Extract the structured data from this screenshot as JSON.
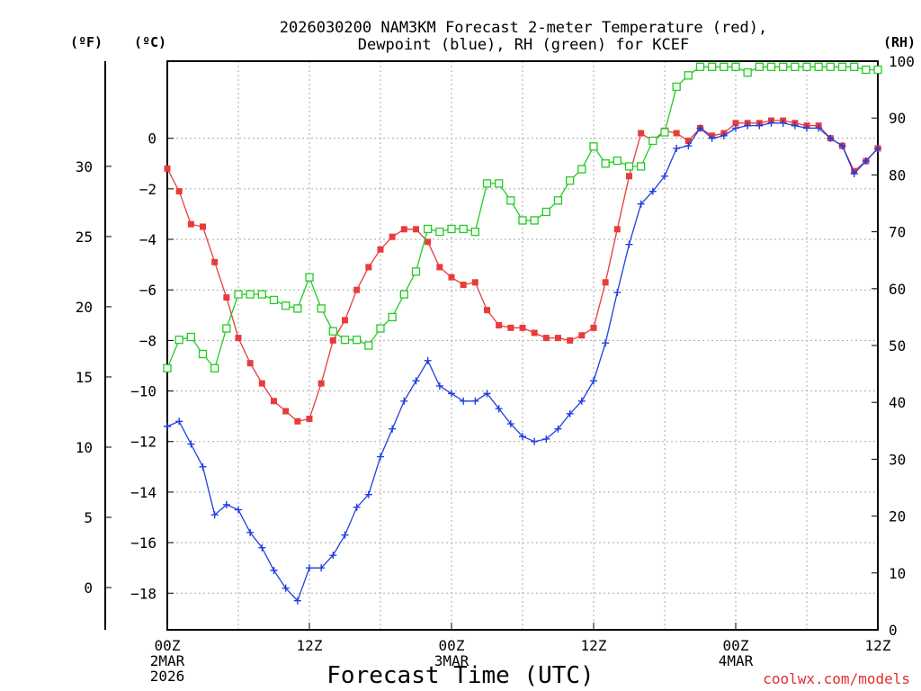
{
  "chart_data": {
    "type": "line",
    "title_line1": "2026030200 NAM3KM Forecast 2-meter Temperature (red),",
    "title_line2": "Dewpoint (blue), RH (green) for KCEF",
    "xlabel": "Forecast Time (UTC)",
    "credit": "coolwx.com/models",
    "unit_f": "(ºF)",
    "unit_c": "(ºC)",
    "unit_rh": "(RH)",
    "x_ticks": [
      {
        "h": 0,
        "l1": "00Z",
        "l2": "2MAR",
        "l3": "2026"
      },
      {
        "h": 12,
        "l1": "12Z",
        "l2": "",
        "l3": ""
      },
      {
        "h": 24,
        "l1": "00Z",
        "l2": "3MAR",
        "l3": ""
      },
      {
        "h": 36,
        "l1": "12Z",
        "l2": "",
        "l3": ""
      },
      {
        "h": 48,
        "l1": "00Z",
        "l2": "4MAR",
        "l3": ""
      },
      {
        "h": 60,
        "l1": "12Z",
        "l2": "",
        "l3": ""
      }
    ],
    "xlim": [
      0,
      60
    ],
    "ylim_c": [
      -19.45,
      3.05
    ],
    "c_ticks": [
      0,
      -2,
      -4,
      -6,
      -8,
      -10,
      -12,
      -14,
      -16,
      -18
    ],
    "c_labels": [
      "0",
      "−2",
      "−4",
      "−6",
      "−8",
      "−10",
      "−12",
      "−14",
      "−16",
      "−18"
    ],
    "f_ticks": [
      30,
      25,
      20,
      15,
      10,
      5,
      0
    ],
    "f_labels": [
      "30",
      "25",
      "20",
      "15",
      "10",
      "5",
      "0"
    ],
    "rh_ticks": [
      100,
      90,
      80,
      70,
      60,
      50,
      40,
      30,
      20,
      10,
      0
    ],
    "rh_labels": [
      "100",
      "90",
      "80",
      "70",
      "60",
      "50",
      "40",
      "30",
      "20",
      "10",
      "0"
    ],
    "series": [
      {
        "name": "Temperature",
        "color": "#e83c3c",
        "marker": "square-filled",
        "values": [
          -1.2,
          -2.1,
          -3.4,
          -3.5,
          -4.9,
          -6.3,
          -7.9,
          -8.9,
          -9.7,
          -10.4,
          -10.8,
          -11.2,
          -11.1,
          -9.7,
          -8.0,
          -7.2,
          -6.0,
          -5.1,
          -4.4,
          -3.9,
          -3.6,
          -3.6,
          -4.1,
          -5.1,
          -5.5,
          -5.8,
          -5.7,
          -6.8,
          -7.4,
          -7.5,
          -7.5,
          -7.7,
          -7.9,
          -7.9,
          -8.0,
          -7.8,
          -7.5,
          -5.7,
          -3.6,
          -1.5,
          0.2,
          -0.1,
          0.3,
          0.2,
          -0.1,
          0.4,
          0.1,
          0.2,
          0.6,
          0.6,
          0.6,
          0.7,
          0.7,
          0.6,
          0.5,
          0.5,
          0.0,
          -0.3,
          -1.3,
          -0.9,
          -0.4
        ]
      },
      {
        "name": "Dewpoint",
        "color": "#1f3fe0",
        "marker": "plus",
        "values": [
          -11.4,
          -11.2,
          -12.1,
          -13.0,
          -14.9,
          -14.5,
          -14.7,
          -15.6,
          -16.2,
          -17.1,
          -17.8,
          -18.3,
          -17.0,
          -17.0,
          -16.5,
          -15.7,
          -14.6,
          -14.1,
          -12.6,
          -11.5,
          -10.4,
          -9.6,
          -8.8,
          -9.8,
          -10.1,
          -10.4,
          -10.4,
          -10.1,
          -10.7,
          -11.3,
          -11.8,
          -12.0,
          -11.9,
          -11.5,
          -10.9,
          -10.4,
          -9.6,
          -8.1,
          -6.1,
          -4.2,
          -2.6,
          -2.1,
          -1.5,
          -0.4,
          -0.3,
          0.4,
          0.0,
          0.1,
          0.4,
          0.5,
          0.5,
          0.6,
          0.6,
          0.5,
          0.4,
          0.4,
          0.0,
          -0.3,
          -1.4,
          -0.9,
          -0.4
        ]
      },
      {
        "name": "RH",
        "color": "#22cc22",
        "marker": "square-open",
        "values": [
          46,
          51,
          51.5,
          48.5,
          46,
          53,
          59,
          59,
          59,
          58,
          57,
          56.5,
          62,
          56.5,
          52.5,
          51,
          51,
          50,
          53,
          55,
          59,
          63,
          70.5,
          70,
          70.5,
          70.5,
          70,
          78.5,
          78.5,
          75.5,
          72,
          72,
          73.5,
          75.5,
          79,
          81,
          85,
          82,
          82.5,
          81.5,
          81.5,
          86,
          87.5,
          95.5,
          97.5,
          99,
          99,
          99,
          99,
          98,
          99,
          99,
          99,
          99,
          99,
          99,
          99,
          99,
          99,
          98.5,
          98.5
        ]
      }
    ]
  }
}
